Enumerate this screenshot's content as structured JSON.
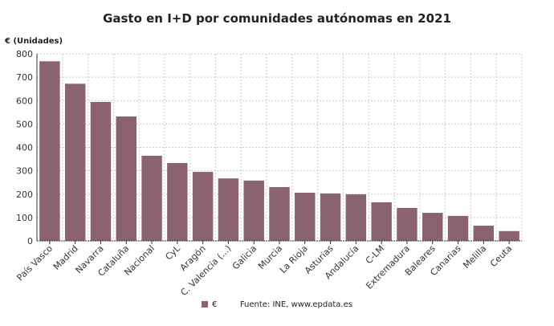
{
  "chart_data": {
    "type": "bar",
    "title": "Gasto en I+D por comunidades autónomas en 2021",
    "ylabel": "€ (Unidades)",
    "xlabel": "",
    "ylim": [
      0,
      800
    ],
    "yticks": [
      0,
      100,
      200,
      300,
      400,
      500,
      600,
      700,
      800
    ],
    "grid": true,
    "legend_position": "bottom",
    "color": "#8b6270",
    "categories": [
      "País Vasco",
      "Madrid",
      "Navarra",
      "Cataluña",
      "Nacional",
      "CyL",
      "Aragón",
      "C. Valencia (...)",
      "Galicia",
      "Murcia",
      "La Rioja",
      "Asturias",
      "Andalucía",
      "C-LM",
      "Extremadura",
      "Baleares",
      "Canarias",
      "Melilla",
      "Ceuta"
    ],
    "series": [
      {
        "name": "€",
        "values": [
          768,
          672,
          594,
          532,
          364,
          333,
          295,
          267,
          258,
          230,
          206,
          203,
          199,
          165,
          141,
          120,
          107,
          65,
          42
        ]
      }
    ]
  },
  "source": "Fuente: INE, www.epdata.es"
}
